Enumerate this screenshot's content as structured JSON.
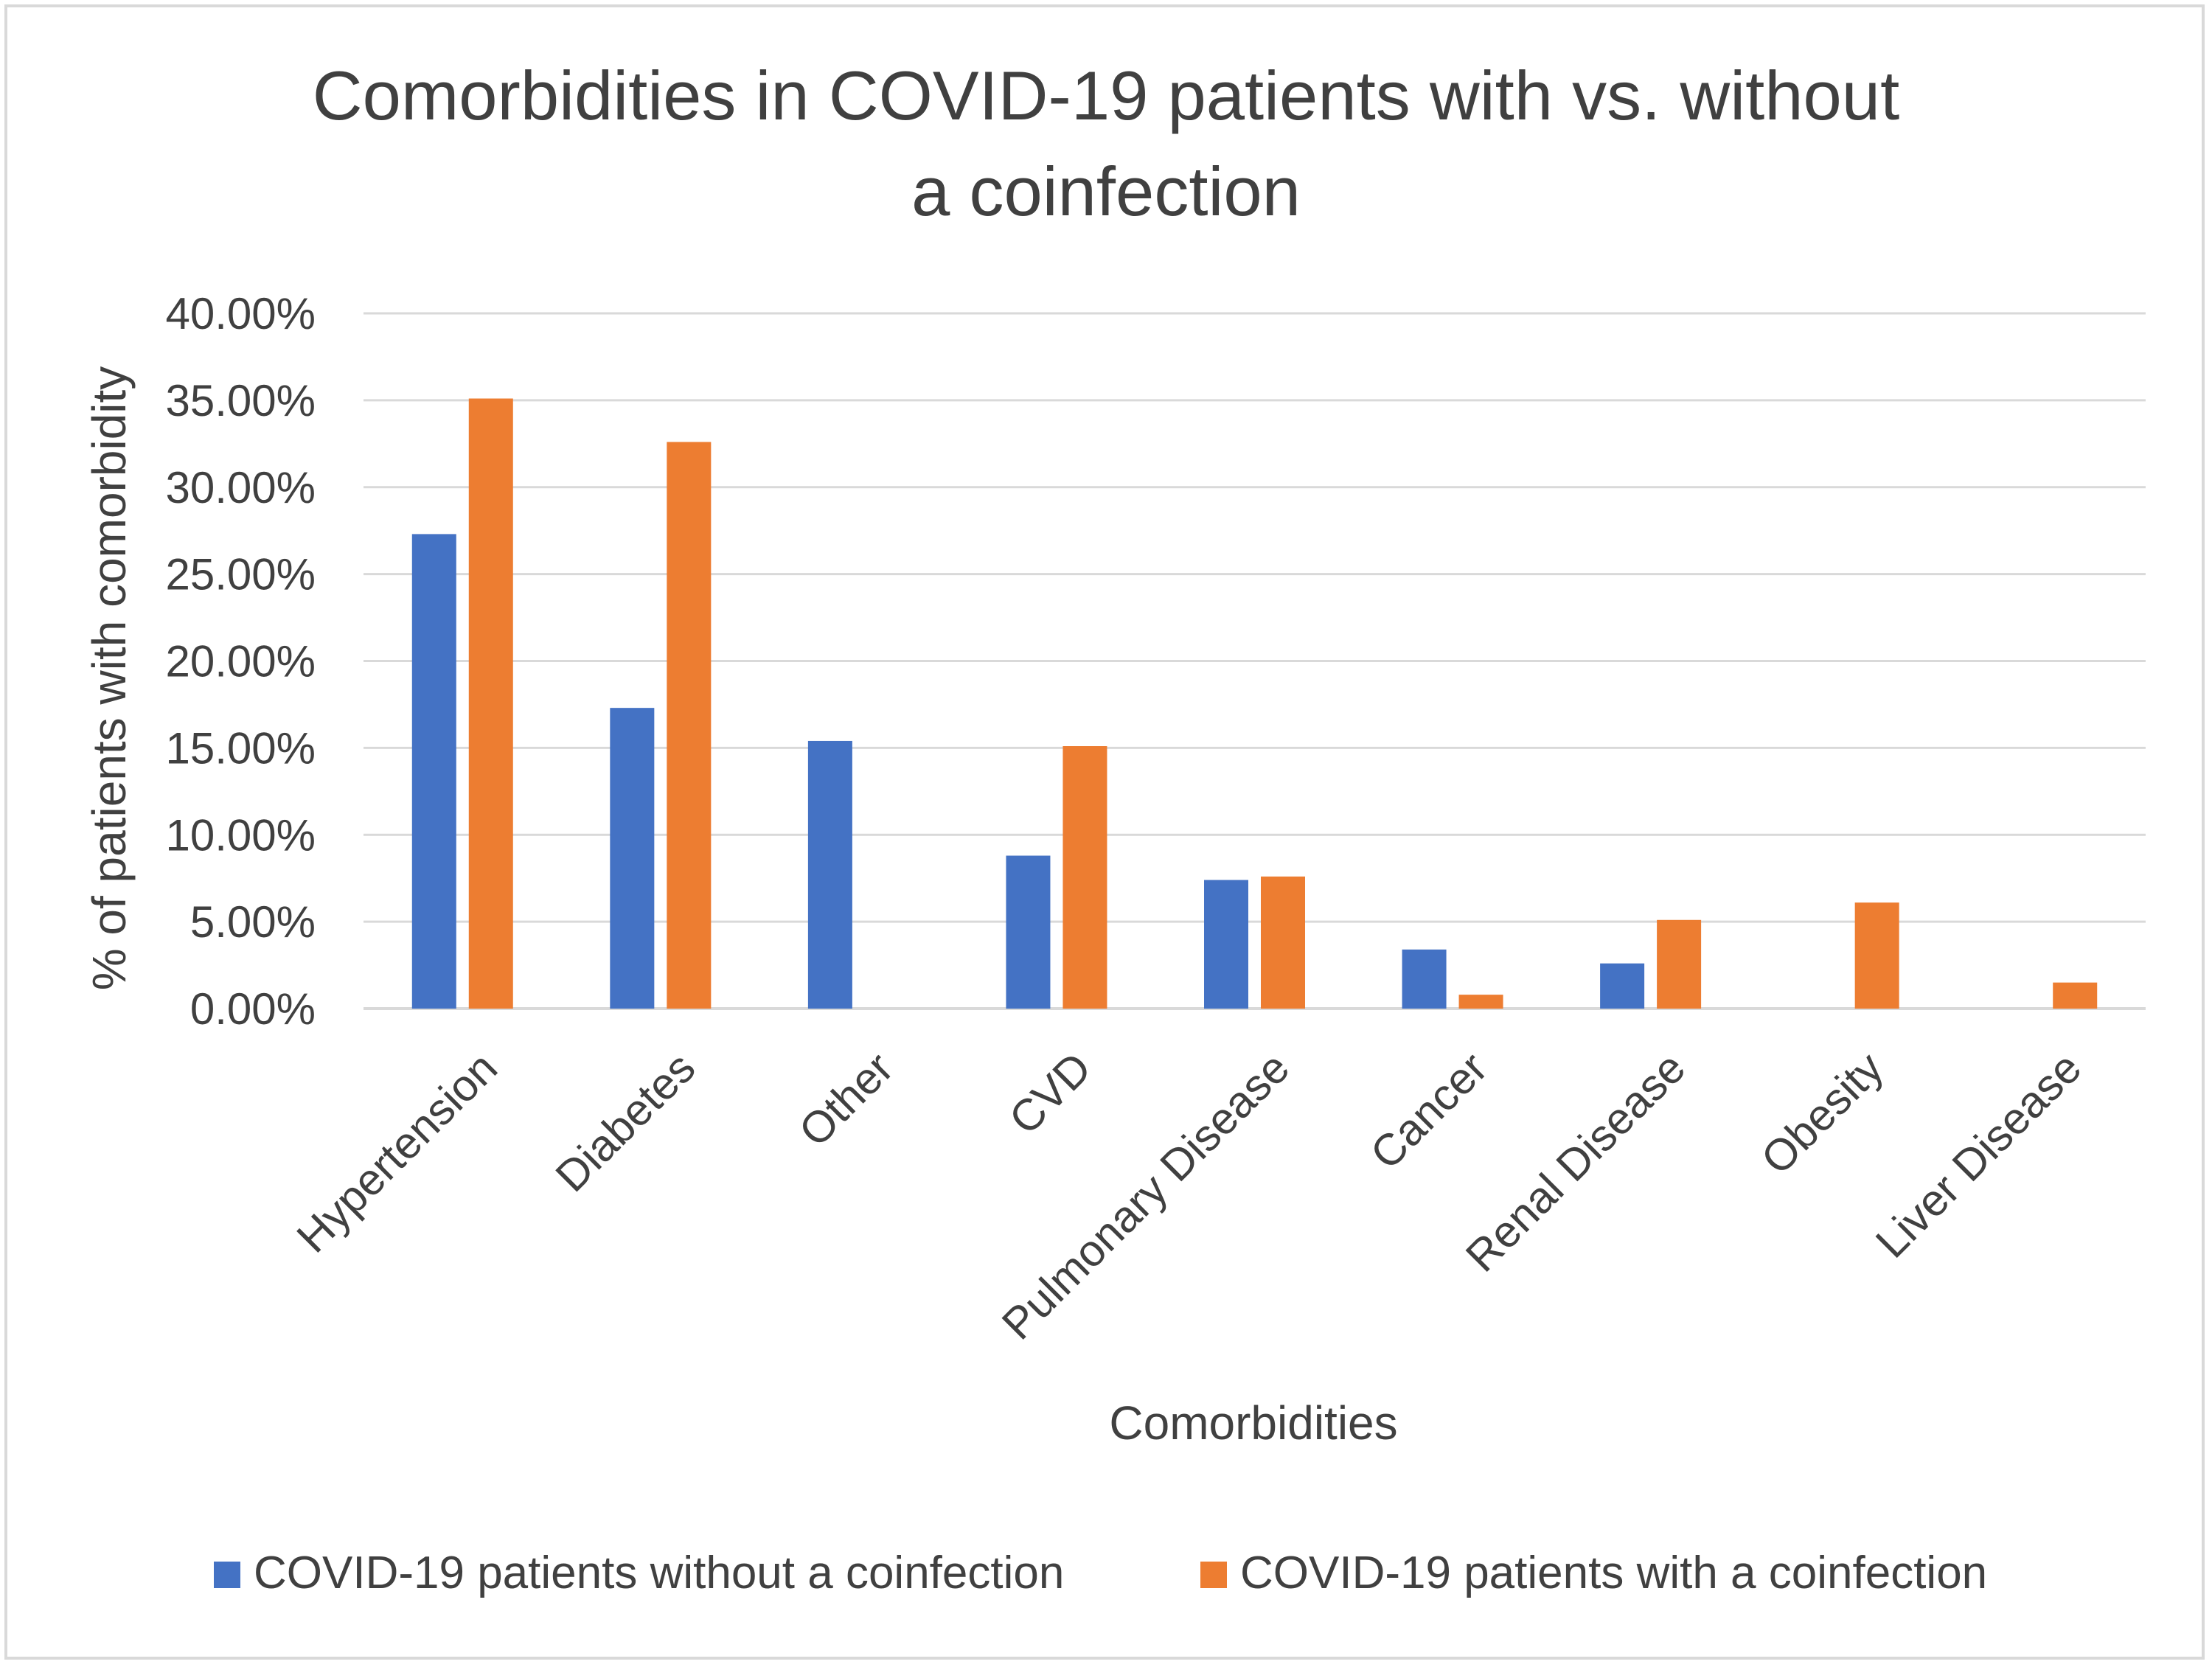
{
  "chart_data": {
    "type": "bar",
    "title_lines": [
      "Comorbidities in COVID-19 patients with vs. without",
      "a coinfection"
    ],
    "xlabel": "Comorbidities",
    "ylabel": "% of patients with comorbidity",
    "ylim": [
      0,
      0.4
    ],
    "yticks": [
      0,
      0.05,
      0.1,
      0.15,
      0.2,
      0.25,
      0.3,
      0.35,
      0.4
    ],
    "ytick_labels": [
      "0.00%",
      "5.00%",
      "10.00%",
      "15.00%",
      "20.00%",
      "25.00%",
      "30.00%",
      "35.00%",
      "40.00%"
    ],
    "grid": true,
    "legend_position": "bottom",
    "categories": [
      "Hypertension",
      "Diabetes",
      "Other",
      "CVD",
      "Pulmonary Disease",
      "Cancer",
      "Renal Disease",
      "Obesity",
      "Liver Disease"
    ],
    "series": [
      {
        "name": "COVID-19 patients without a coinfection",
        "color": "#4472C4",
        "values": [
          0.273,
          0.173,
          0.154,
          0.088,
          0.074,
          0.034,
          0.026,
          0.0,
          0.0
        ]
      },
      {
        "name": "COVID-19 patients with a coinfection",
        "color": "#ED7D31",
        "values": [
          0.351,
          0.326,
          0.0,
          0.151,
          0.076,
          0.008,
          0.051,
          0.061,
          0.015
        ]
      }
    ]
  }
}
